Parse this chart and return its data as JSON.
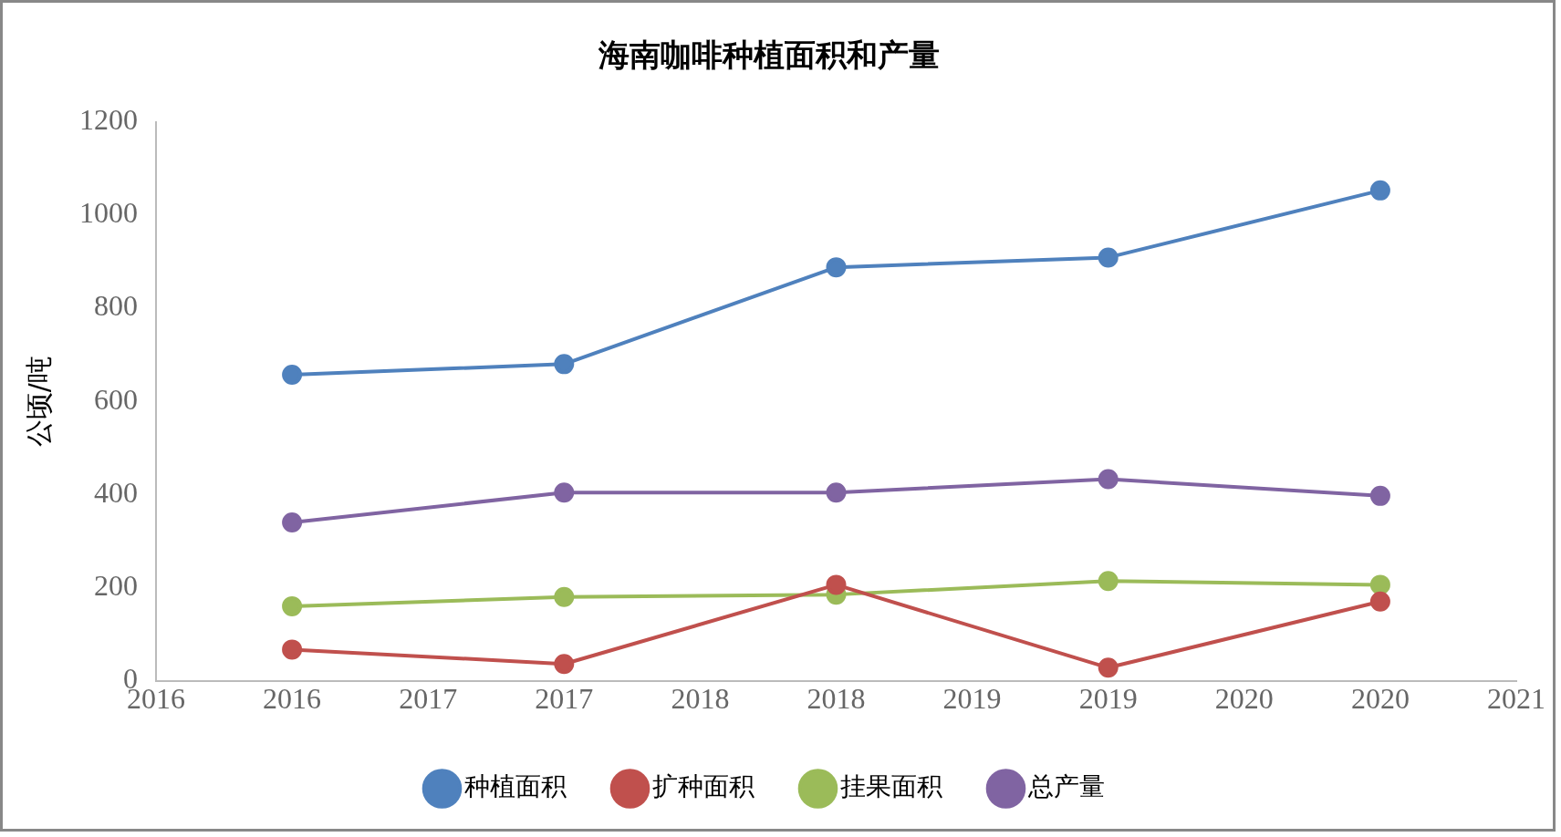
{
  "chart_data": {
    "type": "line",
    "title": "海南咖啡种植面积和产量",
    "ylabel": "公顷/吨",
    "x": [
      2016,
      2017,
      2018,
      2019,
      2020
    ],
    "xlim": [
      2015.5,
      2020.5
    ],
    "xticks": [
      {
        "value": 2015.5,
        "label": "2016"
      },
      2016,
      {
        "value": 2016.5,
        "label": "2017"
      },
      2017,
      {
        "value": 2017.5,
        "label": "2018"
      },
      2018,
      {
        "value": 2018.5,
        "label": "2019"
      },
      2019,
      {
        "value": 2019.5,
        "label": "2020"
      },
      2020,
      {
        "value": 2020.5,
        "label": "2021"
      }
    ],
    "ylim": [
      0,
      1200
    ],
    "yticks": [
      0,
      200,
      400,
      600,
      800,
      1000,
      1200
    ],
    "series": [
      {
        "name": "种植面积",
        "color": "#4f81bd",
        "values": [
          657,
          680,
          888,
          909,
          1053
        ]
      },
      {
        "name": "扩种面积",
        "color": "#c0504d",
        "values": [
          67,
          36,
          206,
          28,
          170
        ]
      },
      {
        "name": "挂果面积",
        "color": "#9bbb59",
        "values": [
          160,
          180,
          185,
          214,
          206
        ]
      },
      {
        "name": "总产量",
        "color": "#8064a2",
        "values": [
          340,
          404,
          404,
          433,
          397
        ]
      }
    ],
    "marker": "circle",
    "grid": false,
    "legend": "bottom"
  }
}
